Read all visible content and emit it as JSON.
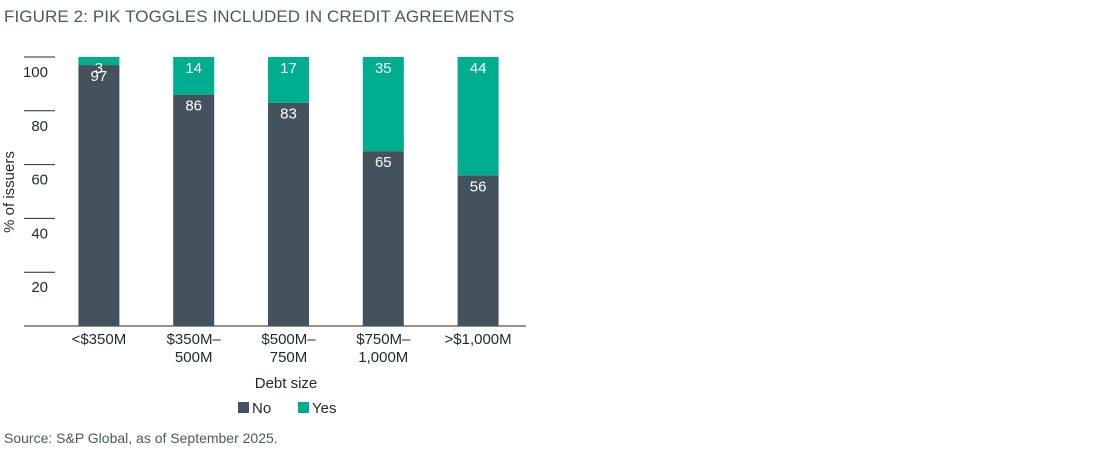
{
  "figure": {
    "title": "FIGURE 2: PIK TOGGLES INCLUDED IN CREDIT AGREEMENTS",
    "source": "Source: S&P Global, as of September 2025."
  },
  "colors": {
    "no": "#44525e",
    "yes": "#00ad8e",
    "axis": "#1e2a30"
  },
  "chart_data": {
    "type": "bar",
    "stacked": true,
    "categories": [
      "<$350M",
      "$350M–\n500M",
      "$500M–\n750M",
      "$750M–\n1,000M",
      ">$1,000M"
    ],
    "series": [
      {
        "name": "No",
        "values": [
          97,
          86,
          83,
          65,
          56
        ]
      },
      {
        "name": "Yes",
        "values": [
          3,
          14,
          17,
          35,
          44
        ]
      }
    ],
    "xlabel": "Debt size",
    "ylabel": "% of issuers",
    "ylim": [
      0,
      100
    ],
    "yticks": [
      20,
      40,
      60,
      80,
      100
    ],
    "legend_position": "bottom"
  }
}
